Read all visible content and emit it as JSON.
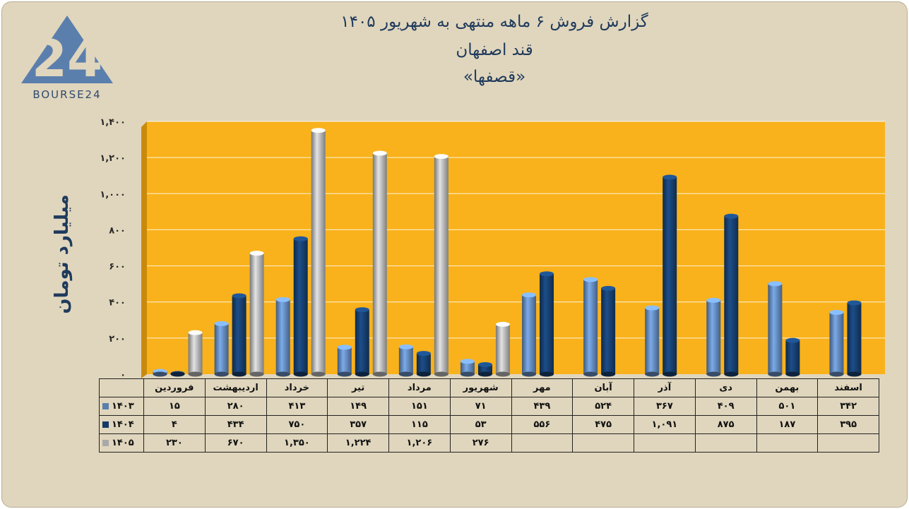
{
  "header": {
    "logo_text": "BOURSE24",
    "title_line1": "گزارش  فروش ۶ ماهه منتهی به شهریور ۱۴۰۵",
    "title_line2": "قند اصفهان",
    "title_line3": "«قصفها»"
  },
  "chart_data": {
    "type": "bar",
    "ylabel": "میلیارد تومان",
    "ylim": [
      0,
      1400
    ],
    "yticks": [
      0,
      200,
      400,
      600,
      800,
      1000,
      1200,
      1400
    ],
    "ytick_labels": [
      "۰",
      "۲۰۰",
      "۴۰۰",
      "۶۰۰",
      "۸۰۰",
      "۱,۰۰۰",
      "۱,۲۰۰",
      "۱,۴۰۰"
    ],
    "categories": [
      "فروردین",
      "اردیبهشت",
      "خرداد",
      "تیر",
      "مرداد",
      "شهریور",
      "مهر",
      "آبان",
      "آذر",
      "دی",
      "بهمن",
      "اسفند"
    ],
    "series": [
      {
        "name": "۱۴۰۳",
        "color": "#5b7fad",
        "values": [
          15,
          280,
          413,
          149,
          151,
          71,
          439,
          524,
          367,
          409,
          501,
          342
        ],
        "labels": [
          "۱۵",
          "۲۸۰",
          "۴۱۳",
          "۱۴۹",
          "۱۵۱",
          "۷۱",
          "۴۳۹",
          "۵۲۴",
          "۳۶۷",
          "۴۰۹",
          "۵۰۱",
          "۳۴۲"
        ]
      },
      {
        "name": "۱۴۰۴",
        "color": "#153a66",
        "values": [
          4,
          434,
          750,
          357,
          115,
          53,
          556,
          475,
          1091,
          875,
          187,
          395
        ],
        "labels": [
          "۴",
          "۴۳۴",
          "۷۵۰",
          "۳۵۷",
          "۱۱۵",
          "۵۳",
          "۵۵۶",
          "۴۷۵",
          "۱,۰۹۱",
          "۸۷۵",
          "۱۸۷",
          "۳۹۵"
        ]
      },
      {
        "name": "۱۴۰۵",
        "color": "#a8a8a8",
        "values": [
          230,
          670,
          1350,
          1224,
          1206,
          276,
          null,
          null,
          null,
          null,
          null,
          null
        ],
        "labels": [
          "۲۳۰",
          "۶۷۰",
          "۱,۳۵۰",
          "۱,۲۲۴",
          "۱,۲۰۶",
          "۲۷۶",
          "",
          "",
          "",
          "",
          "",
          ""
        ]
      }
    ],
    "plot_background": "#f9b21b",
    "grid": true,
    "legend": "data-table-below"
  }
}
